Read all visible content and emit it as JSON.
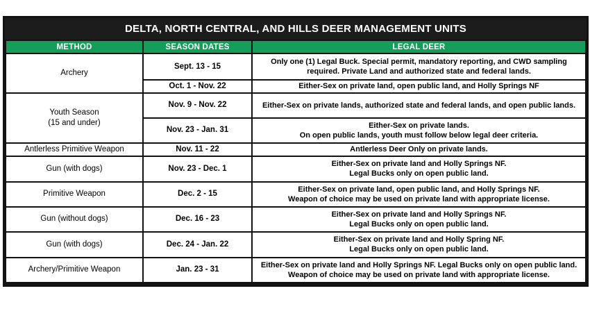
{
  "title": "DELTA, NORTH CENTRAL, AND HILLS DEER MANAGEMENT UNITS",
  "colors": {
    "title_bar_bg": "#1c1c1c",
    "header_bg": "#149e5a",
    "header_text": "#ffffff",
    "border": "#121212",
    "body_text": "#000000"
  },
  "table": {
    "columns": [
      "METHOD",
      "SEASON DATES",
      "LEGAL DEER"
    ],
    "rows": [
      {
        "method": "Archery",
        "method_rowspan": 2,
        "season_dates": "Sept. 13 - 15",
        "legal_deer": "Only one (1) Legal Buck. Special permit, mandatory reporting, and CWD sampling required. Private Land and authorized state and federal lands."
      },
      {
        "season_dates": "Oct. 1 - Nov. 22",
        "legal_deer": "Either-Sex on private land, open public land, and Holly Springs NF"
      },
      {
        "method": "Youth Season\n(15 and under)",
        "method_rowspan": 2,
        "season_dates": "Nov. 9 - Nov. 22",
        "legal_deer": "Either-Sex on private lands, authorized state and federal lands, and open public lands."
      },
      {
        "season_dates": "Nov. 23 - Jan. 31",
        "legal_deer": "Either-Sex on private lands.\nOn open public lands, youth must follow below legal deer criteria."
      },
      {
        "method": "Antlerless Primitive Weapon",
        "season_dates": "Nov. 11 - 22",
        "legal_deer": "Antlerless Deer Only on private lands."
      },
      {
        "method": "Gun (with dogs)",
        "season_dates": "Nov. 23 - Dec. 1",
        "legal_deer": "Either-Sex on private land and Holly Springs NF.\nLegal Bucks only on open public land."
      },
      {
        "method": "Primitive Weapon",
        "season_dates": "Dec. 2 - 15",
        "legal_deer": "Either-Sex on private land, open public land, and Holly Springs NF.\nWeapon of choice may be used on private land with appropriate license."
      },
      {
        "method": "Gun (without dogs)",
        "season_dates": "Dec. 16 - 23",
        "legal_deer": "Either-Sex on private land and Holly Springs NF.\nLegal Bucks only on open public land."
      },
      {
        "method": "Gun (with dogs)",
        "season_dates": "Dec. 24 - Jan. 22",
        "legal_deer": "Either-Sex on private land and Holly Spring NF.\nLegal Bucks only on open public land."
      },
      {
        "method": "Archery/Primitive Weapon",
        "season_dates": "Jan. 23 - 31",
        "legal_deer": "Either-Sex on private land and Holly Springs NF.  Legal Bucks only on open public land. Weapon of choice may be used on private land with appropriate license."
      }
    ]
  }
}
